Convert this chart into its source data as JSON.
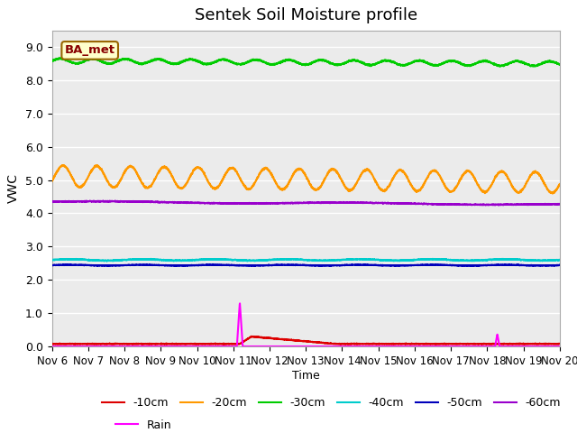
{
  "title": "Sentek Soil Moisture profile",
  "xlabel": "Time",
  "ylabel": "VWC",
  "ylim": [
    0.0,
    9.5
  ],
  "xlim": [
    0,
    14
  ],
  "xtick_labels": [
    "Nov 6",
    "Nov 7",
    "Nov 8",
    "Nov 9",
    "Nov 10",
    "Nov 11",
    "Nov 12",
    "Nov 13",
    "Nov 14",
    "Nov 15",
    "Nov 16",
    "Nov 17",
    "Nov 18",
    "Nov 19",
    "Nov 20"
  ],
  "ytick_values": [
    0.0,
    1.0,
    2.0,
    3.0,
    4.0,
    5.0,
    6.0,
    7.0,
    8.0,
    9.0
  ],
  "legend_label": "BA_met",
  "bg_color": "#ebebeb",
  "series": {
    "-10cm": {
      "color": "#dd0000",
      "base": 0.07,
      "amp": 0.0,
      "period": 1.0,
      "trend": 0.0,
      "noise": 0.015
    },
    "-20cm": {
      "color": "#ff9900",
      "base": 5.12,
      "amp": 0.32,
      "period": 0.93,
      "trend": -0.014,
      "noise": 0.012
    },
    "-30cm": {
      "color": "#00cc00",
      "base": 8.58,
      "amp": 0.07,
      "period": 0.9,
      "trend": -0.006,
      "noise": 0.01
    },
    "-40cm": {
      "color": "#00cccc",
      "base": 2.6,
      "amp": 0.02,
      "period": 2.0,
      "trend": 0.0,
      "noise": 0.006
    },
    "-50cm": {
      "color": "#0000bb",
      "base": 2.44,
      "amp": 0.01,
      "period": 2.0,
      "trend": 0.0,
      "noise": 0.004
    },
    "-60cm": {
      "color": "#9900cc",
      "base": 4.35,
      "amp": 0.02,
      "period": 2.0,
      "trend": -0.006,
      "noise": 0.006
    }
  },
  "rain": {
    "color": "#ff00ff",
    "spike1_x": 5.18,
    "spike1_y": 1.32,
    "spike2_x": 12.28,
    "spike2_y": 0.37
  },
  "red_response": {
    "start_x": 5.18,
    "peak_x": 5.5,
    "peak_y": 0.22,
    "end_x": 7.8
  }
}
